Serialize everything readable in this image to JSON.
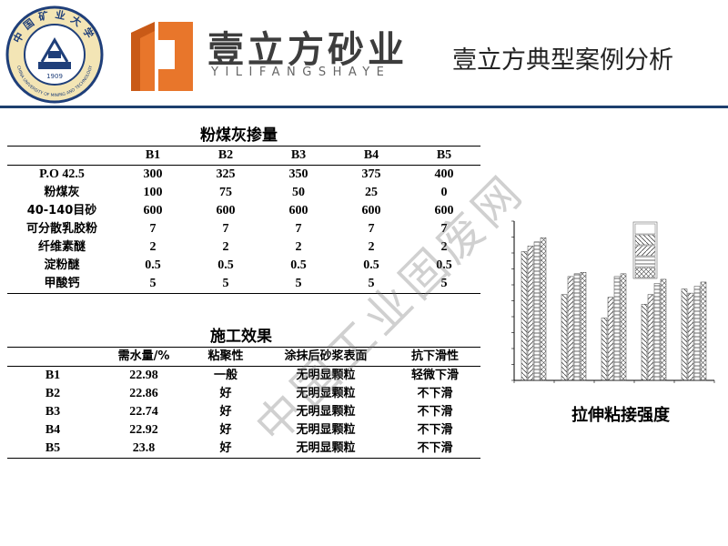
{
  "header": {
    "seal_text": "中国矿业大学",
    "seal_en": "CHINA UNIVERSITY OF MINING AND TECHNOLOGY",
    "seal_year": "1909",
    "brand_cn": "壹立方砂业",
    "brand_en": "YILIFANGSHAYE",
    "page_title": "壹立方典型案例分析"
  },
  "mix_table": {
    "title": "粉煤灰掺量",
    "columns": [
      "",
      "B1",
      "B2",
      "B3",
      "B4",
      "B5"
    ],
    "rows": [
      [
        "P.O 42.5",
        "300",
        "325",
        "350",
        "375",
        "400"
      ],
      [
        "粉煤灰",
        "100",
        "75",
        "50",
        "25",
        "0"
      ],
      [
        "40-140目砂",
        "600",
        "600",
        "600",
        "600",
        "600"
      ],
      [
        "可分散乳胶粉",
        "7",
        "7",
        "7",
        "7",
        "7"
      ],
      [
        "纤维素醚",
        "2",
        "2",
        "2",
        "2",
        "2"
      ],
      [
        "淀粉醚",
        "0.5",
        "0.5",
        "0.5",
        "0.5",
        "0.5"
      ],
      [
        "甲酸钙",
        "5",
        "5",
        "5",
        "5",
        "5"
      ]
    ]
  },
  "effect_table": {
    "title": "施工效果",
    "columns": [
      "",
      "需水量/%",
      "粘聚性",
      "涂抹后砂浆表面",
      "抗下滑性"
    ],
    "rows": [
      [
        "B1",
        "22.98",
        "一般",
        "无明显颗粒",
        "轻微下滑"
      ],
      [
        "B2",
        "22.86",
        "好",
        "无明显颗粒",
        "不下滑"
      ],
      [
        "B3",
        "22.74",
        "好",
        "无明显颗粒",
        "不下滑"
      ],
      [
        "B4",
        "22.92",
        "好",
        "无明显颗粒",
        "不下滑"
      ],
      [
        "B5",
        "23.8",
        "好",
        "无明显颗粒",
        "不下滑"
      ]
    ]
  },
  "watermark": "中国工业固废网",
  "chart_caption": "拉伸粘接强度",
  "chart_data": {
    "type": "bar",
    "title": "拉伸粘接强度",
    "categories": [
      "",
      "",
      "",
      "",
      ""
    ],
    "series": [
      {
        "values": [
          0.93,
          0.62,
          0.45,
          0.55,
          0.66
        ]
      },
      {
        "values": [
          0.97,
          0.75,
          0.6,
          0.62,
          0.63
        ]
      },
      {
        "values": [
          1.0,
          0.77,
          0.75,
          0.7,
          0.68
        ]
      },
      {
        "values": [
          1.03,
          0.78,
          0.77,
          0.73,
          0.71
        ]
      }
    ],
    "ylim": [
      0,
      1.15
    ],
    "xlabel": "",
    "ylabel": "",
    "grid": false,
    "legend": "top-right",
    "patterns": [
      "backslash-hatch",
      "slash-hatch",
      "horizontal-hatch",
      "cross-hatch"
    ]
  }
}
